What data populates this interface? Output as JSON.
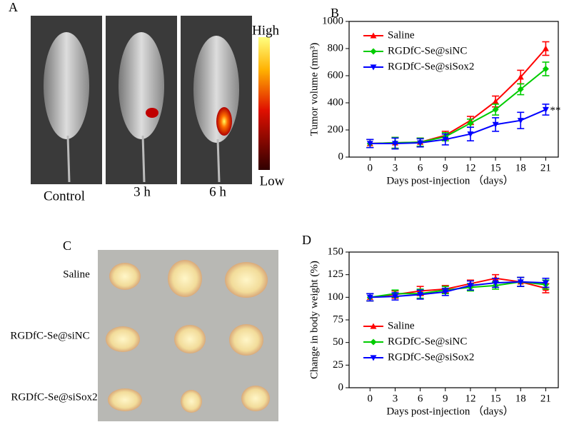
{
  "panel_labels": [
    "A",
    "B",
    "C",
    "D"
  ],
  "imaging": {
    "labels": [
      "Control",
      "3 h",
      "6 h"
    ],
    "scale_high": "High",
    "scale_low": "Low"
  },
  "tumor_photo": {
    "rows": [
      "Saline",
      "RGDfC-Se@siNC",
      "RGDfC-Se@siSox2"
    ]
  },
  "chart_data": [
    {
      "type": "line",
      "xlabel": "Days post-injection （days）",
      "ylabel": "Tumor volume (mm³)",
      "x": [
        0,
        3,
        6,
        9,
        12,
        15,
        18,
        21
      ],
      "xlim": [
        -2.5,
        22.5
      ],
      "xticks": [
        0,
        3,
        6,
        9,
        12,
        15,
        18,
        21
      ],
      "ylim": [
        0,
        1000
      ],
      "yticks": [
        0,
        200,
        400,
        600,
        800,
        1000
      ],
      "legend": "upper left",
      "annotation": "**",
      "series": [
        {
          "name": "Saline",
          "color": "#ff0000",
          "marker": "^",
          "values": [
            100,
            105,
            110,
            160,
            270,
            410,
            590,
            800
          ],
          "errors": [
            30,
            40,
            30,
            30,
            30,
            40,
            50,
            50
          ]
        },
        {
          "name": "RGDfC-Se@siNC",
          "color": "#00cc00",
          "marker": "D",
          "values": [
            100,
            105,
            110,
            150,
            250,
            350,
            500,
            650
          ],
          "errors": [
            30,
            40,
            30,
            30,
            30,
            40,
            40,
            50
          ]
        },
        {
          "name": "RGDfC-Se@siSox2",
          "color": "#0000ff",
          "marker": "v",
          "values": [
            100,
            100,
            105,
            130,
            170,
            240,
            270,
            350
          ],
          "errors": [
            30,
            40,
            30,
            40,
            50,
            50,
            60,
            40
          ]
        }
      ]
    },
    {
      "type": "line",
      "xlabel": "Days post-injection （days）",
      "ylabel": "Change in body weight (%)",
      "x": [
        0,
        3,
        6,
        9,
        12,
        15,
        18,
        21
      ],
      "xlim": [
        -2.5,
        22.5
      ],
      "xticks": [
        0,
        3,
        6,
        9,
        12,
        15,
        18,
        21
      ],
      "ylim": [
        0,
        150
      ],
      "yticks": [
        0,
        25,
        50,
        75,
        100,
        125,
        150
      ],
      "legend": "lower left",
      "series": [
        {
          "name": "Saline",
          "color": "#ff0000",
          "marker": "^",
          "values": [
            100,
            103,
            107,
            109,
            115,
            121,
            117,
            110
          ],
          "errors": [
            4,
            4,
            5,
            4,
            4,
            4,
            5,
            5
          ]
        },
        {
          "name": "RGDfC-Se@siNC",
          "color": "#00cc00",
          "marker": "D",
          "values": [
            100,
            104,
            104,
            108,
            111,
            113,
            117,
            114
          ],
          "errors": [
            4,
            4,
            5,
            4,
            4,
            4,
            5,
            5
          ]
        },
        {
          "name": "RGDfC-Se@siSox2",
          "color": "#0000ff",
          "marker": "v",
          "values": [
            100,
            101,
            103,
            106,
            113,
            116,
            117,
            116
          ],
          "errors": [
            4,
            4,
            5,
            4,
            5,
            5,
            5,
            5
          ]
        }
      ]
    }
  ]
}
